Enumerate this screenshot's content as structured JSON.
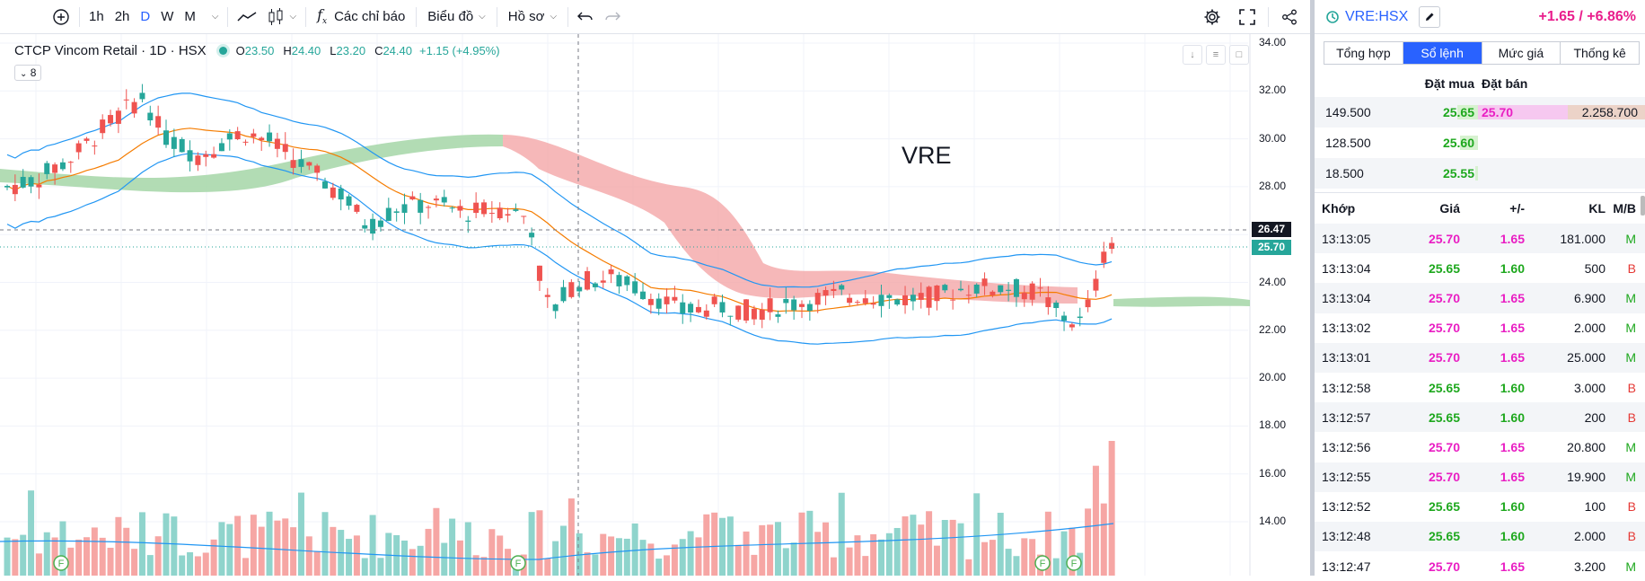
{
  "toolbar": {
    "intervals": [
      "1h",
      "2h",
      "D",
      "W",
      "M"
    ],
    "active_interval": "D",
    "indicators_label": "Các chỉ báo",
    "chart_label": "Biểu đồ",
    "profile_label": "Hồ sơ",
    "icons": [
      "plus-circle-icon",
      "line-chart-icon",
      "candles-icon",
      "fx-icon",
      "undo-icon",
      "redo-icon",
      "gear-icon",
      "fullscreen-icon",
      "share-icon"
    ]
  },
  "legend": {
    "title": "CTCP Vincom Retail · 1D · HSX",
    "o_label": "O",
    "o": "23.50",
    "h_label": "H",
    "h": "24.40",
    "l_label": "L",
    "l": "23.20",
    "c_label": "C",
    "c": "24.40",
    "change": "+1.15 (+4.95%)",
    "indicator_count": "8"
  },
  "watermark": "VRE",
  "price_axis": [
    "34.00",
    "32.00",
    "30.00",
    "28.00",
    "26.00",
    "24.00",
    "22.00",
    "20.00",
    "18.00",
    "16.00",
    "14.00"
  ],
  "price_tags": {
    "crosshair": "26.47",
    "last": "25.70"
  },
  "colors": {
    "up": "#26a69a",
    "down": "#ef5350",
    "accent": "#2962ff",
    "buy": "#1ea81e",
    "sell": "#e91ec3"
  },
  "panel": {
    "symbol": "VRE:HSX",
    "change": "+1.65 / +6.86%",
    "tabs": [
      "Tổng hợp",
      "Sổ lệnh",
      "Mức giá",
      "Thống kê"
    ],
    "active_tab": "Sổ lệnh",
    "orderbook": {
      "buy_header": "Đặt mua",
      "sell_header": "Đặt bán",
      "rows": [
        {
          "buy_vol": "149.500",
          "buy_price": "25.65",
          "sell_price": "25.70",
          "sell_vol": "2.258.700"
        },
        {
          "buy_vol": "128.500",
          "buy_price": "25.60",
          "sell_price": "",
          "sell_vol": ""
        },
        {
          "buy_vol": "18.500",
          "buy_price": "25.55",
          "sell_price": "",
          "sell_vol": ""
        }
      ]
    },
    "trades": {
      "headers": [
        "Khớp",
        "Giá",
        "+/-",
        "KL",
        "M/B"
      ],
      "rows": [
        {
          "time": "13:13:05",
          "price": "25.70",
          "chg": "1.65",
          "vol": "181.000",
          "side": "M"
        },
        {
          "time": "13:13:04",
          "price": "25.65",
          "chg": "1.60",
          "vol": "500",
          "side": "B"
        },
        {
          "time": "13:13:04",
          "price": "25.70",
          "chg": "1.65",
          "vol": "6.900",
          "side": "M"
        },
        {
          "time": "13:13:02",
          "price": "25.70",
          "chg": "1.65",
          "vol": "2.000",
          "side": "M"
        },
        {
          "time": "13:13:01",
          "price": "25.70",
          "chg": "1.65",
          "vol": "25.000",
          "side": "M"
        },
        {
          "time": "13:12:58",
          "price": "25.65",
          "chg": "1.60",
          "vol": "3.000",
          "side": "B"
        },
        {
          "time": "13:12:57",
          "price": "25.65",
          "chg": "1.60",
          "vol": "200",
          "side": "B"
        },
        {
          "time": "13:12:56",
          "price": "25.70",
          "chg": "1.65",
          "vol": "20.800",
          "side": "M"
        },
        {
          "time": "13:12:55",
          "price": "25.70",
          "chg": "1.65",
          "vol": "19.900",
          "side": "M"
        },
        {
          "time": "13:12:52",
          "price": "25.65",
          "chg": "1.60",
          "vol": "100",
          "side": "B"
        },
        {
          "time": "13:12:48",
          "price": "25.65",
          "chg": "1.60",
          "vol": "2.000",
          "side": "B"
        },
        {
          "time": "13:12:47",
          "price": "25.70",
          "chg": "1.65",
          "vol": "3.200",
          "side": "M"
        }
      ]
    }
  }
}
